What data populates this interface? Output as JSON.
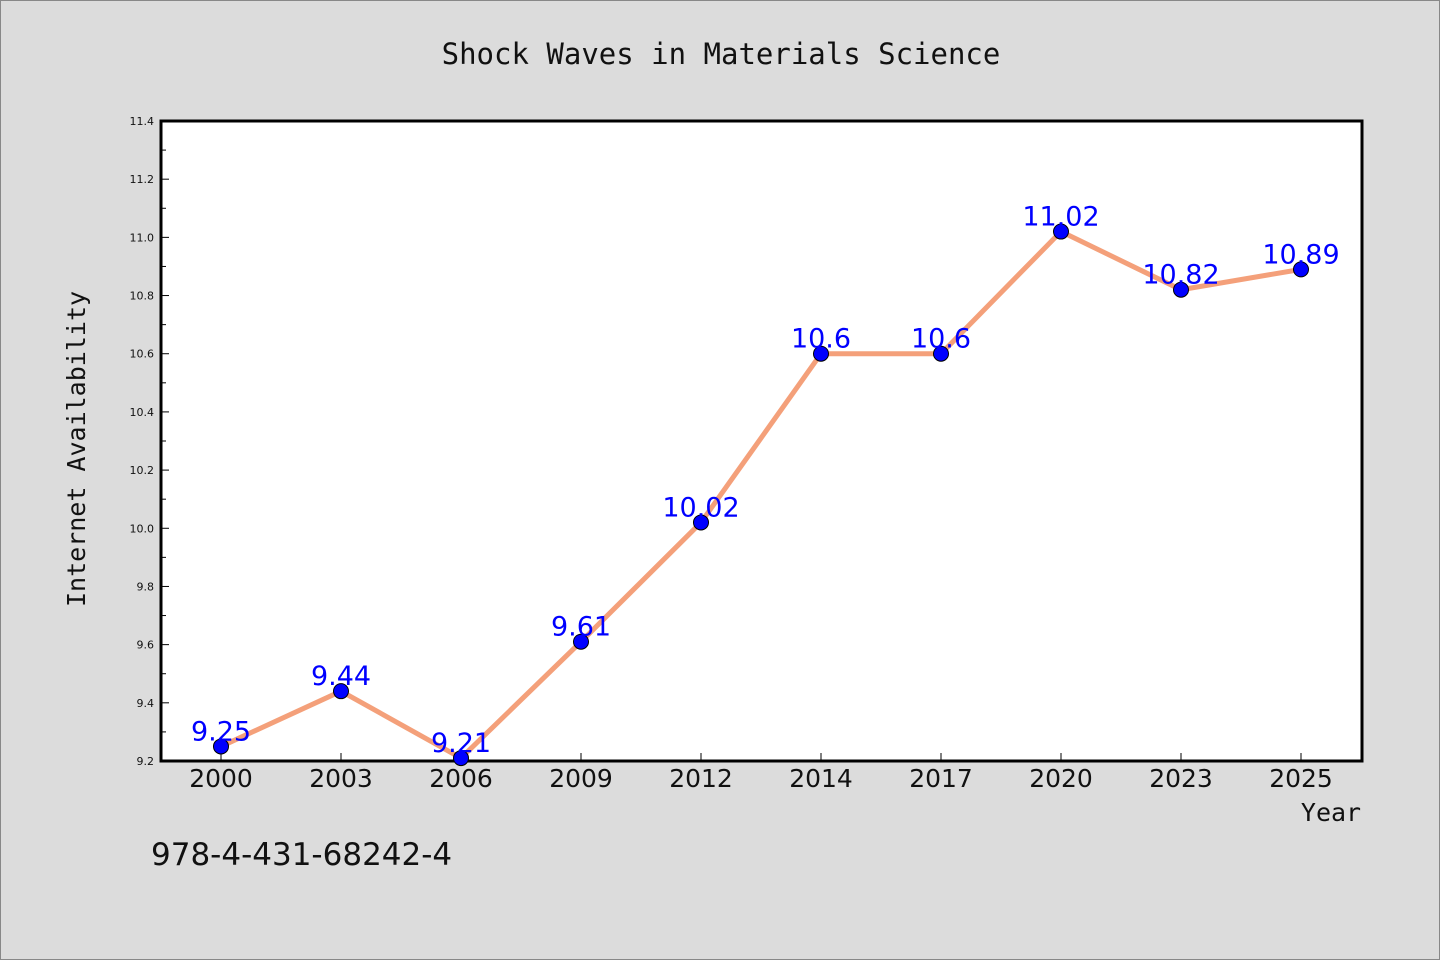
{
  "chart_data": {
    "type": "line",
    "title": "Shock Waves in Materials Science",
    "xlabel": "Year",
    "ylabel": "Internet Availability",
    "categories": [
      "2000",
      "2003",
      "2006",
      "2009",
      "2012",
      "2014",
      "2017",
      "2020",
      "2023",
      "2025"
    ],
    "series": [
      {
        "values": [
          9.25,
          9.44,
          9.21,
          9.61,
          10.02,
          10.6,
          10.6,
          11.02,
          10.82,
          10.89
        ],
        "data_labels": [
          "9.25",
          "9.44",
          "9.21",
          "9.61",
          "10.02",
          "10.6",
          "10.6",
          "11.02",
          "10.82",
          "10.89"
        ]
      }
    ],
    "ylim": [
      9.2,
      11.4
    ],
    "yticks": [
      "9.2",
      "9.4",
      "9.6",
      "9.8",
      "10.0",
      "10.2",
      "10.4",
      "10.6",
      "10.8",
      "11.0",
      "11.2",
      "11.4"
    ],
    "grid": false,
    "line_color": "#f4a07a",
    "marker_color": "#0000ff",
    "label_color": "#0000ff"
  },
  "footer": {
    "isbn": "978-4-431-68242-4"
  }
}
